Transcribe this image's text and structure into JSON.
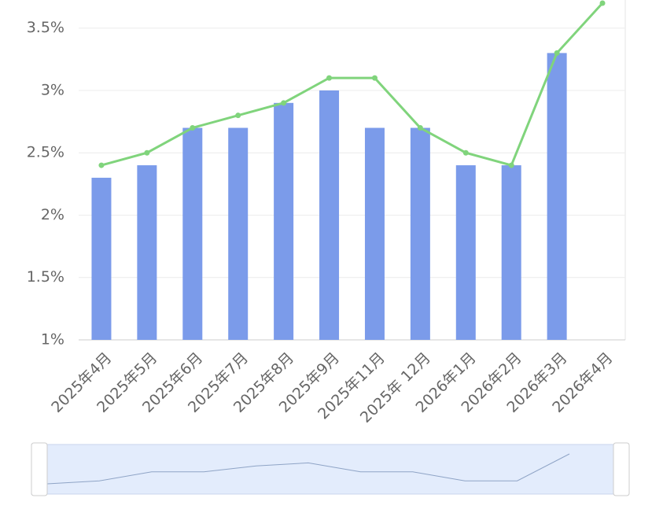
{
  "chart_data": {
    "type": "bar-line",
    "categories": [
      "2025年4月",
      "2025年5月",
      "2025年6月",
      "2025年7月",
      "2025年8月",
      "2025年9月",
      "2025年11月",
      "2025年 12月",
      "2026年1月",
      "2026年2月",
      "2026年3月",
      "2026年4月"
    ],
    "series": [
      {
        "type": "bar",
        "color": "#7b9bea",
        "values": [
          2.3,
          2.4,
          2.7,
          2.7,
          2.9,
          3.0,
          2.7,
          2.7,
          2.4,
          2.4,
          3.3,
          null
        ]
      },
      {
        "type": "line",
        "color": "#80d47c",
        "values": [
          2.4,
          2.5,
          2.7,
          2.8,
          2.9,
          3.1,
          3.1,
          2.7,
          2.5,
          2.4,
          3.3,
          3.7
        ]
      }
    ],
    "ylim": [
      1,
      3.7
    ],
    "yticks": [
      {
        "value": 1,
        "label": "1%"
      },
      {
        "value": 1.5,
        "label": "1.5%"
      },
      {
        "value": 2,
        "label": "2%"
      },
      {
        "value": 2.5,
        "label": "2.5%"
      },
      {
        "value": 3,
        "label": "3%"
      },
      {
        "value": 3.5,
        "label": "3.5%"
      }
    ],
    "grid": true
  }
}
